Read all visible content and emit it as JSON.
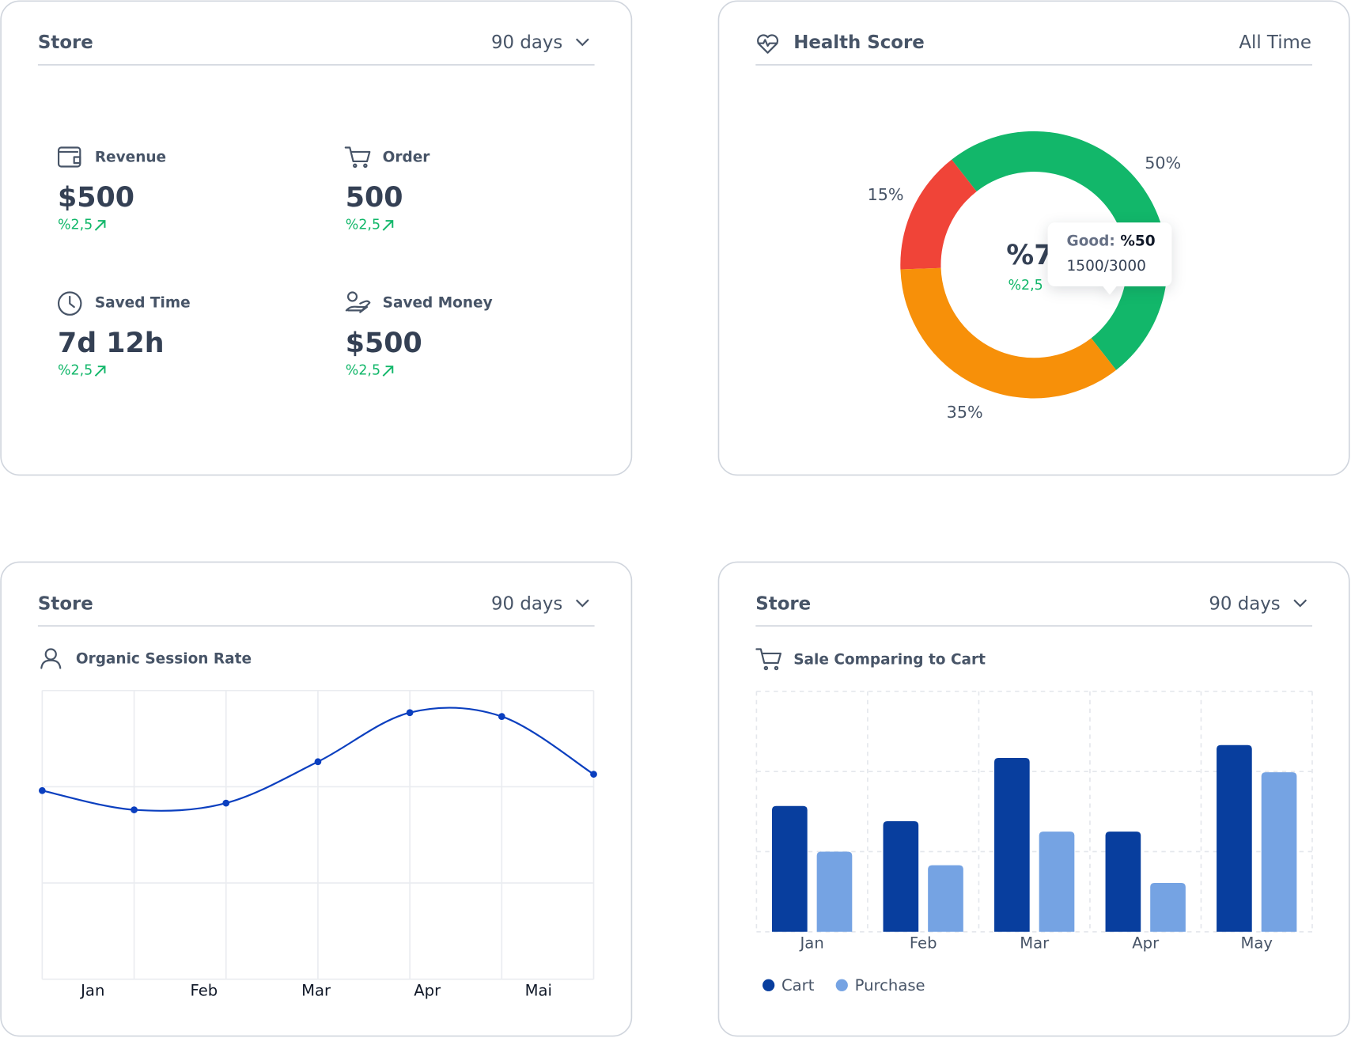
{
  "cards": [
    {
      "title": "Store",
      "period": "90 days",
      "stats": [
        {
          "label": "Revenue",
          "value": "$500",
          "change": "%2,5"
        },
        {
          "label": "Order",
          "value": "500",
          "change": "%2,5"
        },
        {
          "label": "Saved Time",
          "value": "7d 12h",
          "change": "%2,5"
        },
        {
          "label": "Saved Money",
          "value": "$500",
          "change": "%2,5"
        }
      ]
    },
    {
      "title": "Health Score",
      "period": "All Time",
      "center_value": "%7",
      "center_change": "%2,5",
      "tooltip": {
        "label": "Good:",
        "value": "%50",
        "detail": "1500/3000"
      }
    },
    {
      "title": "Store",
      "period": "90 days"
    },
    {
      "title": "Store",
      "period": "90 days"
    }
  ],
  "chart_data": [
    {
      "type": "pie",
      "donut": true,
      "values": [
        15,
        50,
        35
      ],
      "value_labels": [
        "15%",
        "50%",
        "35%"
      ],
      "colors": [
        "#f04438",
        "#12b76a",
        "#f79009"
      ]
    },
    {
      "type": "line",
      "title": "Organic Session Rate",
      "x": [
        0,
        1,
        2,
        3,
        4,
        5,
        6
      ],
      "values": [
        1.96,
        1.76,
        1.83,
        2.26,
        2.77,
        2.73,
        2.13
      ],
      "color": "#0b3fbf",
      "smooth": true,
      "xlim": [
        0,
        6
      ],
      "xticks": [
        {
          "value": 0.55,
          "label": "Jan"
        },
        {
          "value": 1.76,
          "label": "Feb"
        },
        {
          "value": 2.98,
          "label": "Mar"
        },
        {
          "value": 4.19,
          "label": "Apr"
        },
        {
          "value": 5.4,
          "label": "Mai"
        }
      ],
      "ylim": [
        0,
        3
      ],
      "yticks": [
        0,
        1,
        2,
        3
      ],
      "grid": true
    },
    {
      "type": "bar",
      "title": "Sale Comparing to Cart",
      "categories": [
        "Jan",
        "Feb",
        "Mar",
        "Apr",
        "May"
      ],
      "series": [
        {
          "name": "Cart",
          "color": "#083e9e",
          "values": [
            1.57,
            1.38,
            2.17,
            1.25,
            2.33
          ]
        },
        {
          "name": "Purchase",
          "color": "#75a3e3",
          "values": [
            1.0,
            0.83,
            1.25,
            0.61,
            1.99
          ]
        }
      ],
      "ylim": [
        0,
        3
      ],
      "yticks": [
        0,
        1,
        2,
        3
      ],
      "grid": true,
      "legend": "bottom-left"
    }
  ]
}
